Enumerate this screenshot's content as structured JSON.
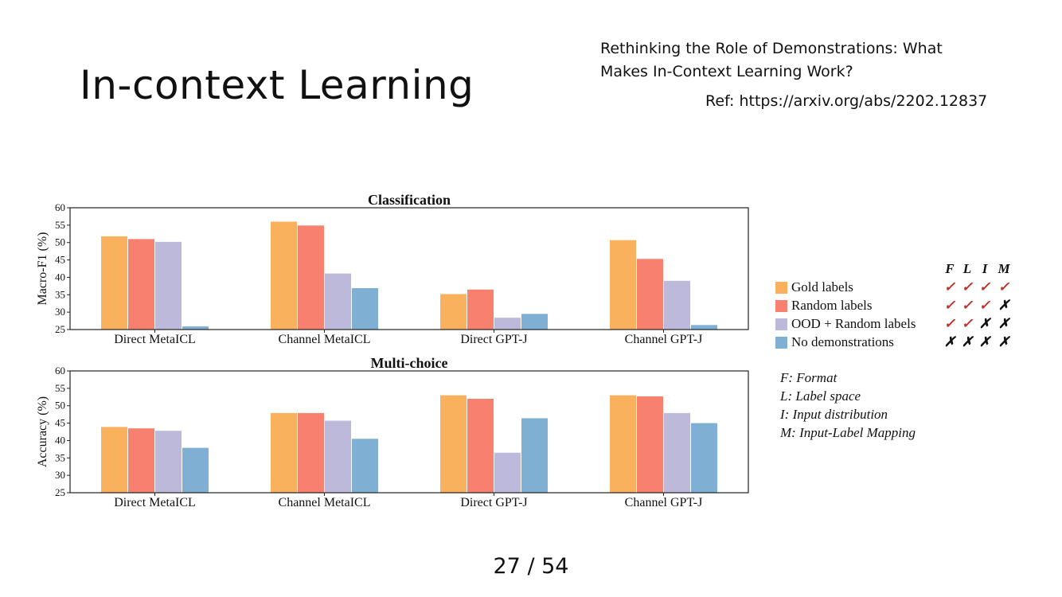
{
  "slide": {
    "title": "In-context Learning",
    "paper_title": "Rethinking the Role of Demonstrations: What Makes In-Context Learning Work?",
    "ref": "Ref: https://arxiv.org/abs/2202.12837",
    "page_number": "27 / 54"
  },
  "chart_data": [
    {
      "type": "bar",
      "title": "Classification",
      "ylabel": "Macro-F1 (%)",
      "xlabel": "",
      "ylim": [
        25,
        60
      ],
      "yticks": [
        25,
        30,
        35,
        40,
        45,
        50,
        55,
        60
      ],
      "categories": [
        "Direct MetaICL",
        "Channel MetaICL",
        "Direct GPT-J",
        "Channel GPT-J"
      ],
      "series": [
        {
          "name": "Gold labels",
          "color": "#f9b15e",
          "values": [
            51.8,
            56.0,
            35.2,
            50.7
          ]
        },
        {
          "name": "Random labels",
          "color": "#f8806f",
          "values": [
            51.0,
            54.9,
            36.5,
            45.3
          ]
        },
        {
          "name": "OOD + Random labels",
          "color": "#bdb9da",
          "values": [
            50.2,
            41.1,
            28.4,
            39.0
          ]
        },
        {
          "name": "No demonstrations",
          "color": "#7fb0d3",
          "values": [
            25.9,
            36.9,
            29.5,
            26.3
          ]
        }
      ]
    },
    {
      "type": "bar",
      "title": "Multi-choice",
      "ylabel": "Accuracy (%)",
      "xlabel": "",
      "ylim": [
        25,
        60
      ],
      "yticks": [
        25,
        30,
        35,
        40,
        45,
        50,
        55,
        60
      ],
      "categories": [
        "Direct MetaICL",
        "Channel MetaICL",
        "Direct GPT-J",
        "Channel GPT-J"
      ],
      "series": [
        {
          "name": "Gold labels",
          "color": "#f9b15e",
          "values": [
            43.9,
            47.9,
            53.0,
            53.0
          ]
        },
        {
          "name": "Random labels",
          "color": "#f8806f",
          "values": [
            43.5,
            47.9,
            52.0,
            52.7
          ]
        },
        {
          "name": "OOD + Random labels",
          "color": "#bdb9da",
          "values": [
            42.8,
            45.7,
            36.5,
            47.9
          ]
        },
        {
          "name": "No demonstrations",
          "color": "#7fb0d3",
          "values": [
            37.9,
            40.5,
            46.4,
            45.0
          ]
        }
      ]
    }
  ],
  "legend": {
    "columns": [
      "F",
      "L",
      "I",
      "M"
    ],
    "rows": [
      {
        "label": "Gold labels",
        "color": "#f9b15e",
        "marks": [
          "✓",
          "✓",
          "✓",
          "✓"
        ]
      },
      {
        "label": "Random labels",
        "color": "#f8806f",
        "marks": [
          "✓",
          "✓",
          "✓",
          "✗"
        ]
      },
      {
        "label": "OOD + Random labels",
        "color": "#bdb9da",
        "marks": [
          "✓",
          "✓",
          "✗",
          "✗"
        ]
      },
      {
        "label": "No demonstrations",
        "color": "#7fb0d3",
        "marks": [
          "✗",
          "✗",
          "✗",
          "✗"
        ]
      }
    ],
    "key": [
      "F: Format",
      "L: Label space",
      "I: Input distribution",
      "M: Input-Label Mapping"
    ]
  }
}
